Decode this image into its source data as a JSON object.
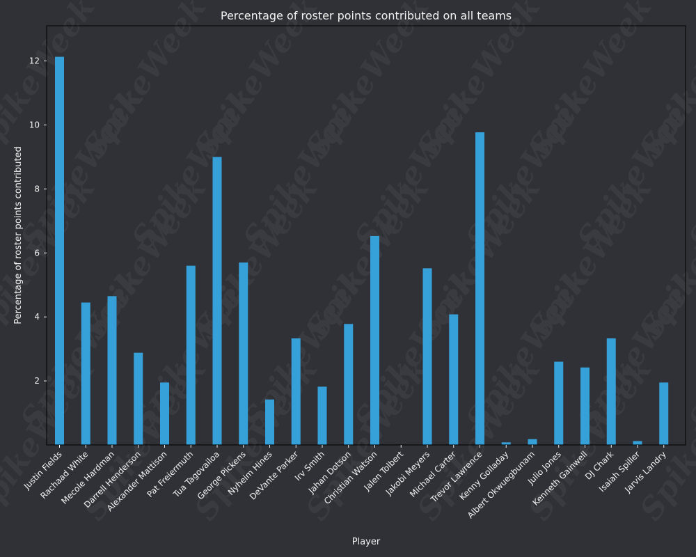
{
  "colors": {
    "background": "#303136",
    "bar": "#36a1d9",
    "text": "#f2f2f2",
    "axis": "#000000",
    "watermark": "#3a3b40"
  },
  "watermark": "SpikeWeek",
  "chart_data": {
    "type": "bar",
    "title": "Percentage of roster points contributed on all teams",
    "xlabel": "Player",
    "ylabel": "Percentage of roster points contributed",
    "ylim": [
      0,
      13.1
    ],
    "yticks": [
      2,
      4,
      6,
      8,
      10,
      12
    ],
    "grid": false,
    "categories": [
      "Justin Fields",
      "Rachaad White",
      "Mecole Hardman",
      "Darrell Henderson",
      "Alexander Mattison",
      "Pat Freiermuth",
      "Tua Tagovailoa",
      "George Pickens",
      "Nyheim Hines",
      "DeVante Parker",
      "Irv Smith",
      "Jahan Dotson",
      "Christian Watson",
      "Jalen Tolbert",
      "Jakobi Meyers",
      "Michael Carter",
      "Trevor Lawrence",
      "Kenny Golladay",
      "Albert Okwuegbunam",
      "Julio Jones",
      "Kenneth Gainwell",
      "DJ Chark",
      "Isaiah Spiller",
      "Jarvis Landry"
    ],
    "values": [
      12.13,
      4.45,
      4.65,
      2.88,
      1.95,
      5.6,
      9.0,
      5.7,
      1.42,
      3.33,
      1.82,
      3.78,
      6.53,
      0.0,
      5.52,
      4.08,
      9.77,
      0.08,
      0.18,
      2.6,
      2.42,
      3.33,
      0.12,
      1.95
    ]
  }
}
